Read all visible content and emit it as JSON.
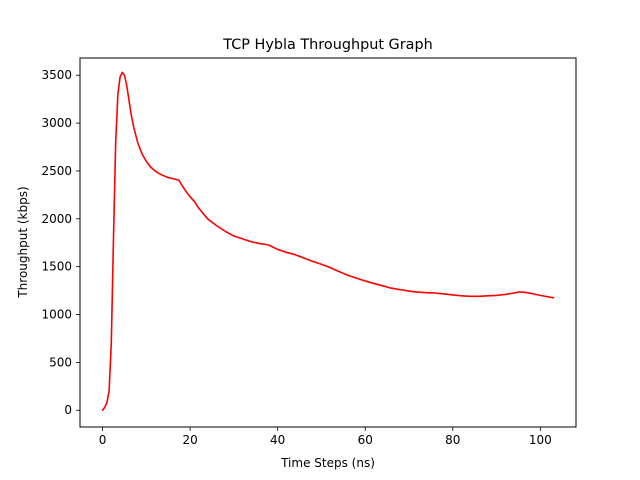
{
  "chart_data": {
    "type": "line",
    "title": "TCP Hybla Throughput Graph",
    "xlabel": "Time Steps (ns)",
    "ylabel": "Throughput (kbps)",
    "xlim": [
      -5.15,
      108.15
    ],
    "ylim": [
      -175,
      3680
    ],
    "xticks": [
      0,
      20,
      40,
      60,
      80,
      100
    ],
    "yticks": [
      0,
      500,
      1000,
      1500,
      2000,
      2500,
      3000,
      3500
    ],
    "grid": false,
    "legend": "none",
    "series": [
      {
        "color": "#ff0000",
        "x": [
          0,
          0.5,
          1,
          1.5,
          2,
          2.5,
          3,
          3.5,
          4,
          4.5,
          5,
          5.5,
          6,
          6.5,
          7,
          8,
          9,
          10,
          11,
          12,
          13,
          14,
          15,
          16,
          17,
          17.5,
          18,
          19,
          20,
          21,
          22,
          24,
          26,
          28,
          30,
          32,
          34,
          36,
          37,
          38,
          40,
          42,
          44,
          46,
          48,
          50,
          52,
          54,
          56,
          58,
          60,
          62,
          64,
          66,
          68,
          70,
          72,
          74,
          76,
          78,
          80,
          82,
          84,
          86,
          88,
          90,
          92,
          94,
          95,
          96,
          98,
          100,
          103
        ],
        "y": [
          0,
          30,
          80,
          200,
          700,
          1800,
          2800,
          3300,
          3480,
          3530,
          3500,
          3400,
          3250,
          3100,
          2980,
          2800,
          2680,
          2600,
          2540,
          2500,
          2470,
          2450,
          2430,
          2420,
          2410,
          2400,
          2360,
          2290,
          2230,
          2180,
          2110,
          2000,
          1930,
          1870,
          1820,
          1790,
          1760,
          1740,
          1735,
          1725,
          1680,
          1650,
          1625,
          1590,
          1555,
          1525,
          1490,
          1450,
          1410,
          1380,
          1350,
          1325,
          1300,
          1275,
          1260,
          1245,
          1235,
          1228,
          1225,
          1215,
          1205,
          1195,
          1190,
          1190,
          1195,
          1200,
          1210,
          1225,
          1235,
          1235,
          1220,
          1200,
          1175
        ]
      }
    ]
  }
}
